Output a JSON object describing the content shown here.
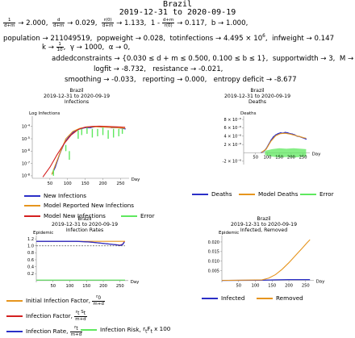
{
  "header": {
    "country": "Brazil",
    "date_range": "2019-12-31 to 2020-09-19"
  },
  "params": {
    "row1": [
      {
        "lhs_num": "1",
        "lhs_den": "d+m",
        "value": "2.000"
      },
      {
        "lhs_num": "d",
        "lhs_den": "d+m",
        "value": "0.029"
      },
      {
        "lhs_num": "r(0)",
        "lhs_den": "d+m",
        "value": "1.133"
      },
      {
        "prefix": "1 -",
        "lhs_num": "d+m",
        "lhs_den": "r(0)",
        "value": "0.117"
      },
      {
        "name": "b",
        "value": "1.000"
      }
    ],
    "row2": [
      {
        "name": "population",
        "value": "211049519"
      },
      {
        "name": "popweight",
        "value": "0.028"
      },
      {
        "name": "totinfections",
        "value": "4.495",
        "exp": "6"
      },
      {
        "name": "infweight",
        "value": "0.147"
      }
    ],
    "row3": {
      "k_name": "k",
      "k_num": "1",
      "k_den": "10",
      "gamma": "1000",
      "alpha": "0"
    },
    "row4": {
      "name": "addedconstraints",
      "value": "{0.030 ≤ d + m ≤ 0.500, 0.100 ≤ b ≤ 1}",
      "sw_name": "supportwidth",
      "sw": "3",
      "m_name": "M",
      "m": "3"
    },
    "row5": [
      {
        "name": "logfit",
        "value": "-8.732"
      },
      {
        "name": "resistance",
        "value": "-0.021"
      }
    ],
    "row6": [
      {
        "name": "smoothing",
        "value": "-0.033"
      },
      {
        "name": "reporting",
        "value": "0.000"
      },
      {
        "name": "entropy deficit",
        "value": "-8.677"
      }
    ]
  },
  "legend": {
    "infections": [
      "New Infections",
      "Model Reported New Infections",
      "Model New Infections",
      "Error"
    ],
    "deaths": [
      "Deaths",
      "Model Deaths",
      "Error"
    ],
    "rates": {
      "initial": "Initial Infection Factor,",
      "factor": "Infection Factor,",
      "rate": "Infection Rate,",
      "risk": "Infection Risk,"
    },
    "removed": [
      "Infected",
      "Removed"
    ]
  },
  "colors": {
    "blue": "#2b2fc7",
    "orange": "#e6951e",
    "red": "#d42020",
    "green": "#5fe85f",
    "gray": "#555555"
  },
  "chart_data": [
    {
      "type": "line",
      "title": "Brazil\n2019-12-31 to 2020-09-19\nInfections",
      "title_lines": [
        "Brazil",
        "2019-12-31 to 2020-09-19",
        "Infections"
      ],
      "ylabel": "Log Infections",
      "xlabel": "Day",
      "yscale": "log",
      "xlim": [
        0,
        265
      ],
      "ylim_exp": [
        -8.2,
        -3.3
      ],
      "x_ticks": [
        50,
        100,
        150,
        200,
        250
      ],
      "y_tick_exps": [
        -8,
        -7,
        -6,
        -5,
        -4
      ],
      "series": [
        {
          "name": "New Infections",
          "color": "blue",
          "x": [
            57,
            65,
            72,
            78,
            84,
            90,
            97,
            105,
            115,
            125,
            135,
            150,
            165,
            180,
            195,
            210,
            225,
            240,
            255,
            263
          ],
          "log_y": [
            -7.8,
            -7.3,
            -6.7,
            -6.2,
            -5.8,
            -5.4,
            -5.1,
            -4.8,
            -4.5,
            -4.3,
            -4.2,
            -4.1,
            -4.1,
            -4.0,
            -4.05,
            -4.05,
            -4.1,
            -4.1,
            -4.15,
            -4.2
          ]
        },
        {
          "name": "Model Reported New Infections",
          "color": "orange",
          "x": [
            55,
            75,
            95,
            115,
            135,
            155,
            175,
            195,
            215,
            235,
            255,
            263
          ],
          "log_y": [
            -7.9,
            -6.4,
            -5.0,
            -4.4,
            -4.15,
            -4.05,
            -4.02,
            -4.04,
            -4.07,
            -4.1,
            -4.13,
            -4.15
          ]
        },
        {
          "name": "Model New Infections",
          "color": "red",
          "x": [
            30,
            50,
            70,
            90,
            110,
            130,
            150,
            170,
            190,
            210,
            230,
            250,
            263
          ],
          "log_y": [
            -8.1,
            -7.3,
            -6.3,
            -5.4,
            -4.7,
            -4.25,
            -4.05,
            -4.0,
            -3.98,
            -4.0,
            -4.02,
            -4.05,
            -4.07
          ]
        },
        {
          "name": "Error",
          "color": "green",
          "type": "bar",
          "x": [
            60,
            95,
            105,
            130,
            140,
            155,
            170,
            185,
            200,
            215,
            230,
            245,
            255
          ],
          "log_y_low": [
            -8.0,
            -6.0,
            -6.7,
            -5.0,
            -4.7,
            -4.6,
            -4.9,
            -4.8,
            -4.7,
            -5.0,
            -4.9,
            -4.8,
            -4.6
          ],
          "log_y_high": [
            -7.5,
            -5.5,
            -6.0,
            -4.3,
            -4.2,
            -4.1,
            -4.2,
            -4.2,
            -4.1,
            -4.3,
            -4.2,
            -4.2,
            -4.2
          ]
        }
      ]
    },
    {
      "type": "line",
      "title": "Brazil\n2019-12-31 to 2020-09-19\nDeaths",
      "title_lines": [
        "Brazil",
        "2019-12-31 to 2020-09-19",
        "Deaths"
      ],
      "ylabel": "Deaths",
      "xlabel": "Day",
      "xlim": [
        0,
        265
      ],
      "ylim": [
        -2.8e-06,
        8.4e-06
      ],
      "x_ticks": [
        50,
        100,
        150,
        200,
        250
      ],
      "y_ticks": [
        -2e-06,
        2e-06,
        4e-06,
        6e-06,
        8e-06
      ],
      "y_tick_labels": [
        "-2 × 10⁻⁶",
        "2 × 10⁻⁶",
        "4 × 10⁻⁶",
        "6 × 10⁻⁶",
        "8 × 10⁻⁶"
      ],
      "series": [
        {
          "name": "Deaths",
          "color": "blue",
          "x": [
            75,
            85,
            95,
            105,
            115,
            125,
            135,
            145,
            155,
            165,
            175,
            185,
            195,
            205,
            215,
            225,
            235,
            245,
            255,
            263
          ],
          "y": [
            1e-07,
            4e-07,
            1e-06,
            2e-06,
            3e-06,
            3.8e-06,
            4.3e-06,
            4.6e-06,
            4.8e-06,
            4.7e-06,
            4.9e-06,
            4.8e-06,
            4.6e-06,
            4.5e-06,
            4.3e-06,
            4e-06,
            3.9e-06,
            3.7e-06,
            3.5e-06,
            3.3e-06
          ]
        },
        {
          "name": "Model Deaths",
          "color": "orange",
          "x": [
            75,
            95,
            115,
            135,
            155,
            175,
            195,
            215,
            235,
            255,
            263
          ],
          "y": [
            1e-07,
            9e-07,
            2.8e-06,
            4.1e-06,
            4.6e-06,
            4.7e-06,
            4.5e-06,
            4.2e-06,
            3.9e-06,
            3.6e-06,
            3.5e-06
          ]
        },
        {
          "name": "Error",
          "color": "green",
          "type": "band",
          "x": [
            90,
            120,
            150,
            180,
            210,
            240,
            263
          ],
          "y_low": [
            -5e-07,
            -9e-07,
            -1.1e-06,
            -1e-06,
            -1.1e-06,
            -1e-06,
            -9e-07
          ],
          "y_high": [
            5e-07,
            9e-07,
            1.1e-06,
            1e-06,
            1.1e-06,
            1e-06,
            9e-07
          ]
        }
      ]
    },
    {
      "type": "line",
      "title": "Brazil\n2019-12-31 to 2020-09-19\nInfection Rates",
      "title_lines": [
        "Brazil",
        "2019-12-31 to 2020-09-19",
        "Infection Rates"
      ],
      "ylabel": "Epidemic",
      "xlabel": "Day",
      "xlim": [
        0,
        265
      ],
      "ylim": [
        -0.05,
        1.25
      ],
      "x_ticks": [
        50,
        100,
        150,
        200,
        250
      ],
      "y_ticks": [
        0.2,
        0.4,
        0.6,
        0.8,
        1.0,
        1.2
      ],
      "series": [
        {
          "name": "Initial Infection Factor",
          "color": "orange",
          "x": [
            0,
            265
          ],
          "y": [
            1.13,
            1.13
          ]
        },
        {
          "name": "Infection Factor",
          "color": "red",
          "x": [
            0,
            120,
            140,
            160,
            180,
            200,
            220,
            240,
            250,
            258,
            263
          ],
          "y": [
            1.13,
            1.13,
            1.12,
            1.11,
            1.09,
            1.07,
            1.05,
            1.03,
            1.02,
            1.05,
            1.12
          ]
        },
        {
          "name": "Infection Rate",
          "color": "blue",
          "x": [
            0,
            120,
            140,
            160,
            180,
            200,
            220,
            240,
            250,
            258,
            263
          ],
          "y": [
            1.13,
            1.13,
            1.12,
            1.11,
            1.09,
            1.07,
            1.05,
            1.03,
            1.01,
            1.04,
            1.11
          ]
        },
        {
          "name": "Infection Risk",
          "color": "green",
          "x": [
            0,
            265
          ],
          "y": [
            0.015,
            0.015
          ]
        },
        {
          "name": "reference",
          "color": "gray",
          "dashed": true,
          "x": [
            0,
            265
          ],
          "y": [
            1.0,
            1.0
          ]
        }
      ]
    },
    {
      "type": "line",
      "title": "Brazil\n2019-12-31 to 2020-09-19\nInfected, Removed",
      "title_lines": [
        "Brazil",
        "2019-12-31 to 2020-09-19",
        "Infected, Removed"
      ],
      "ylabel": "Epidemic",
      "xlabel": "Day",
      "xlim": [
        0,
        265
      ],
      "ylim": [
        -0.001,
        0.0225
      ],
      "x_ticks": [
        50,
        100,
        150,
        200,
        250
      ],
      "y_ticks": [
        0.005,
        0.01,
        0.015,
        0.02
      ],
      "y_tick_labels": [
        "0.005",
        "0.010",
        "0.015",
        "0.020"
      ],
      "series": [
        {
          "name": "Infected",
          "color": "blue",
          "x": [
            0,
            120,
            160,
            200,
            240,
            263
          ],
          "y": [
            0,
            0.0001,
            0.0003,
            0.0004,
            0.0004,
            0.0004
          ]
        },
        {
          "name": "Removed",
          "color": "orange",
          "x": [
            0,
            120,
            140,
            160,
            180,
            200,
            220,
            240,
            255,
            263
          ],
          "y": [
            0,
            0.0003,
            0.0012,
            0.003,
            0.0058,
            0.0092,
            0.013,
            0.0168,
            0.0197,
            0.0212
          ]
        }
      ]
    }
  ]
}
